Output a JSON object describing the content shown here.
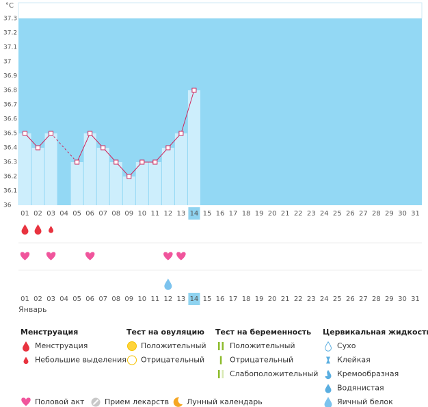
{
  "chart_data": {
    "type": "line",
    "y_label": "°C",
    "month": "Январь",
    "categories": [
      "01",
      "02",
      "03",
      "04",
      "05",
      "06",
      "07",
      "08",
      "09",
      "10",
      "11",
      "12",
      "13",
      "14",
      "15",
      "16",
      "17",
      "18",
      "19",
      "20",
      "21",
      "22",
      "23",
      "24",
      "25",
      "26",
      "27",
      "28",
      "29",
      "30",
      "31"
    ],
    "values": [
      36.5,
      36.4,
      36.5,
      null,
      36.3,
      36.5,
      36.4,
      36.3,
      36.2,
      36.3,
      36.3,
      36.4,
      36.5,
      36.8,
      null,
      null,
      null,
      null,
      null,
      null,
      null,
      null,
      null,
      null,
      null,
      null,
      null,
      null,
      null,
      null,
      null
    ],
    "color": "#d0245a",
    "ylim": [
      36,
      37.3
    ],
    "yticks": [
      36,
      36.1,
      36.2,
      36.3,
      36.4,
      36.5,
      36.6,
      36.7,
      36.8,
      36.9,
      37,
      37.1,
      37.2,
      37.3
    ],
    "today": "14",
    "red_days": [
      "06",
      "07",
      "13",
      "20",
      "21",
      "27",
      "28"
    ],
    "events": [
      {
        "icon": "drop",
        "days": [
          "01",
          "02"
        ]
      },
      {
        "icon": "small-drop",
        "days": [
          "03"
        ]
      },
      {
        "icon": "heart",
        "days": [
          "01",
          "03",
          "06",
          "12",
          "13"
        ]
      },
      {
        "icon": "egg-white",
        "days": [
          "12"
        ]
      }
    ],
    "legend": [
      {
        "title": "Менструация",
        "items": [
          {
            "label": "Менструация",
            "icon": "drop"
          },
          {
            "label": "Небольшие выделения",
            "icon": "small-drop"
          }
        ]
      },
      {
        "title": "Тест на овуляцию",
        "items": [
          {
            "label": "Положительный",
            "icon": "ov-pos"
          },
          {
            "label": "Отрицательный",
            "icon": "ov-neg"
          }
        ]
      },
      {
        "title": "Тест на беременность",
        "items": [
          {
            "label": "Положительный",
            "icon": "pr-pos"
          },
          {
            "label": "Отрицательный",
            "icon": "pr-neg"
          },
          {
            "label": "Слабоположительный",
            "icon": "pr-weak"
          }
        ]
      },
      {
        "title": "Цервикальная жидкость",
        "items": [
          {
            "label": "Сухо",
            "icon": "dry"
          },
          {
            "label": "Клейкая",
            "icon": "sticky"
          },
          {
            "label": "Кремообразная",
            "icon": "creamy"
          },
          {
            "label": "Водянистая",
            "icon": "watery"
          },
          {
            "label": "Яичный белок",
            "icon": "egg-white"
          }
        ]
      }
    ],
    "legend_extra": [
      {
        "label": "Половой акт",
        "icon": "heart"
      },
      {
        "label": "Прием лекарств",
        "icon": "pill"
      },
      {
        "label": "Лунный календарь",
        "icon": "moon"
      }
    ]
  }
}
